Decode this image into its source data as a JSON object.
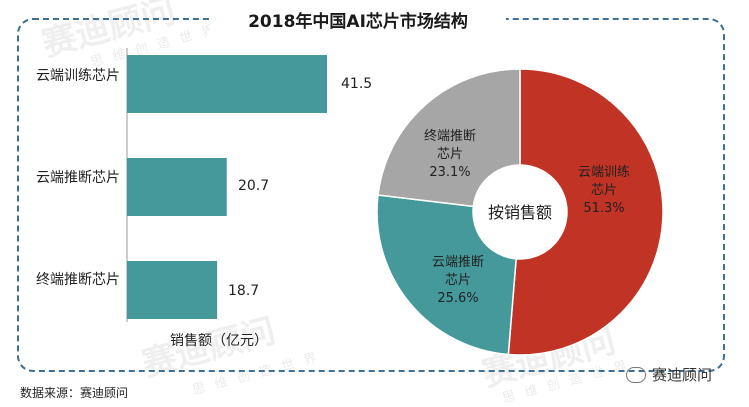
{
  "title": "2018年中国AI芯片市场结构",
  "watermark": "赛迪顾问",
  "watermark_small": "思维创造世界",
  "colors": {
    "bar": "#45999a",
    "pie_red": "#c13325",
    "pie_teal": "#45999a",
    "pie_gray": "#a6a6a6"
  },
  "chart_data": [
    {
      "type": "bar",
      "orientation": "horizontal",
      "categories": [
        "云端训练芯片",
        "云端推断芯片",
        "终端推断芯片"
      ],
      "values": [
        41.5,
        20.7,
        18.7
      ],
      "value_labels": [
        "41.5",
        "20.7",
        "18.7"
      ],
      "unit_label": "销售额（亿元）"
    },
    {
      "type": "pie",
      "donut": true,
      "center_label": "按销售额",
      "slices": [
        {
          "label": "云端训练芯片",
          "value": 51.3,
          "pct_label": "51.3%",
          "color": "#c13325"
        },
        {
          "label": "云端推断芯片",
          "value": 25.6,
          "pct_label": "25.6%",
          "color": "#45999a"
        },
        {
          "label": "终端推断芯片",
          "value": 23.1,
          "pct_label": "23.1%",
          "color": "#a6a6a6"
        }
      ]
    }
  ],
  "source": "数据来源：赛迪顾问",
  "brand": "赛迪顾问",
  "icons": {
    "brand": "wechat-icon"
  }
}
